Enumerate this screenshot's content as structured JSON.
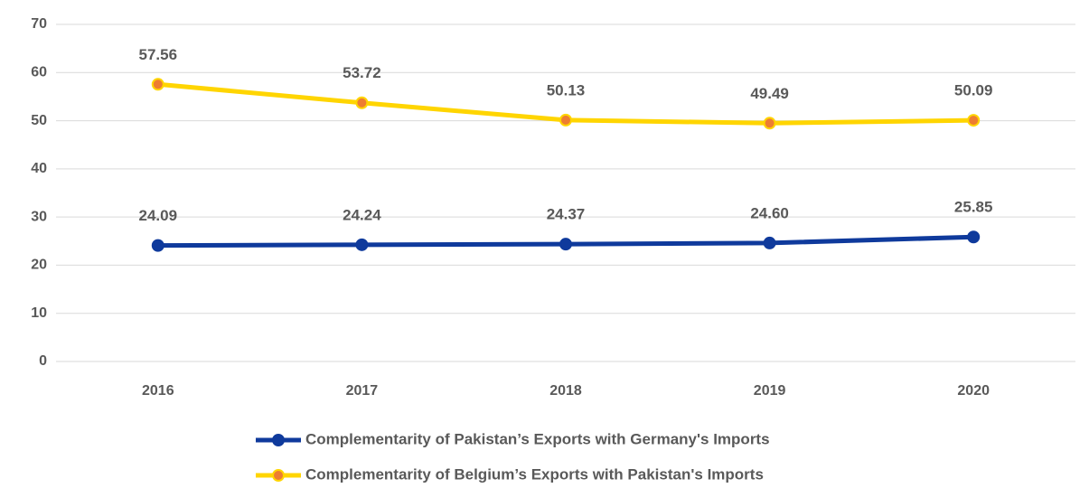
{
  "chart_data": {
    "type": "line",
    "categories": [
      "2016",
      "2017",
      "2018",
      "2019",
      "2020"
    ],
    "series": [
      {
        "name": "Complementarity of Pakistan’s Exports with Germany's Imports",
        "color": "#0f3a9c",
        "marker_color": "#0f3a9c",
        "values": [
          24.09,
          24.24,
          24.37,
          24.6,
          25.85
        ],
        "value_labels": [
          "24.09",
          "24.24",
          "24.37",
          "24.60",
          "25.85"
        ]
      },
      {
        "name": "Complementarity of Belgium’s Exports with Pakistan's Imports",
        "color": "#ffd500",
        "marker_color": "#ed7d31",
        "values": [
          57.56,
          53.72,
          50.13,
          49.49,
          50.09
        ],
        "value_labels": [
          "57.56",
          "53.72",
          "50.13",
          "49.49",
          "50.09"
        ]
      }
    ],
    "ylim": [
      0,
      70
    ],
    "yticks": [
      0,
      10,
      20,
      30,
      40,
      50,
      60,
      70
    ],
    "grid": true,
    "legend": "bottom"
  }
}
